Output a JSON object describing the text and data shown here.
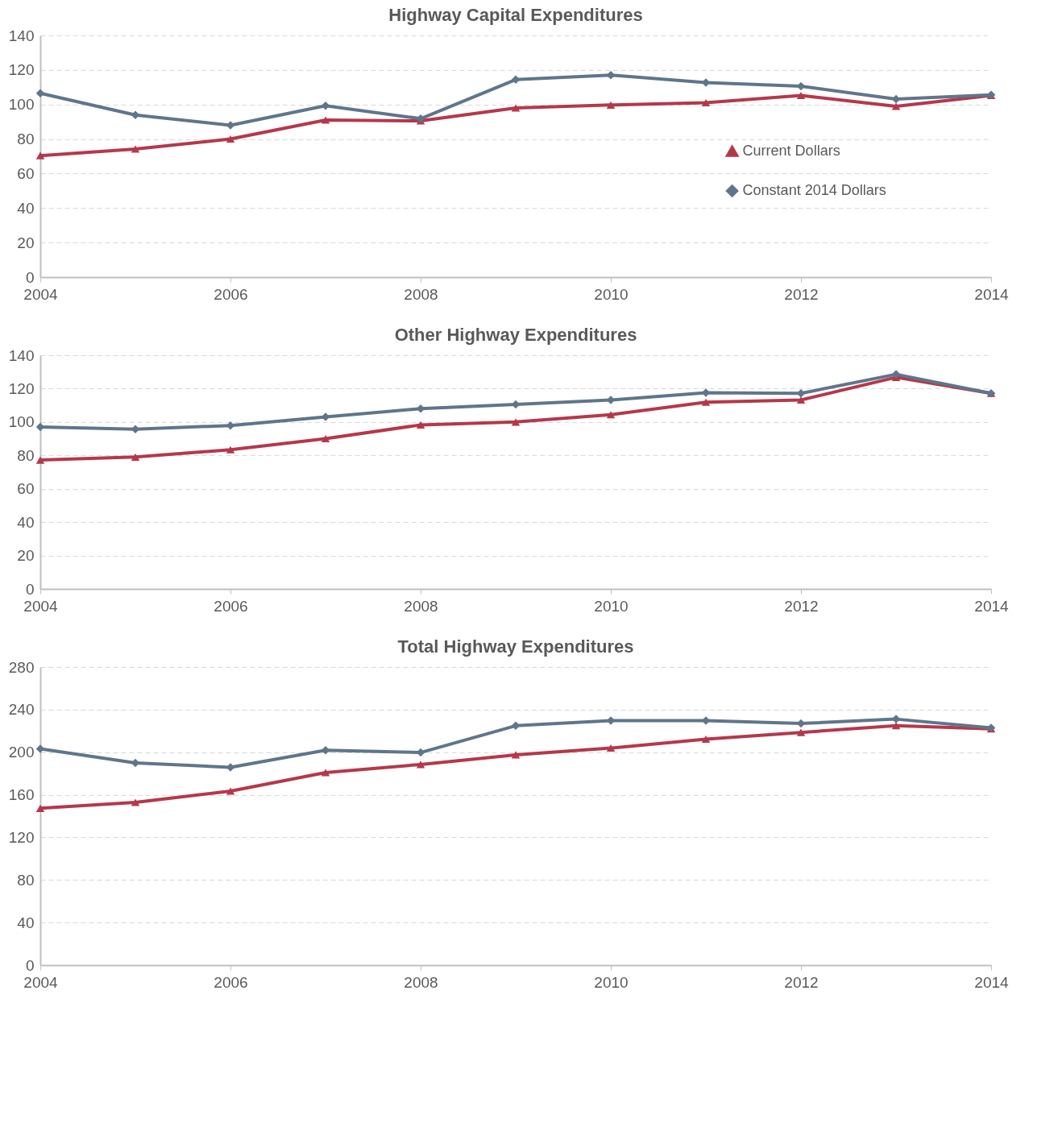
{
  "chart_data": [
    {
      "type": "line",
      "title": "Highway Capital Expenditures",
      "x": [
        2004,
        2005,
        2006,
        2007,
        2008,
        2009,
        2010,
        2011,
        2012,
        2013,
        2014
      ],
      "xlim": [
        2004,
        2014
      ],
      "xticks": [
        2004,
        2006,
        2008,
        2010,
        2012,
        2014
      ],
      "ylim": [
        0,
        140
      ],
      "yticks": [
        0,
        20,
        40,
        60,
        80,
        100,
        120,
        140
      ],
      "grid": "y",
      "legend": "right",
      "line_style": "solid",
      "series": [
        {
          "name": "Current Dollars",
          "color": "#b5384a",
          "marker": "triangle",
          "values": [
            70.4,
            74.2,
            80,
            91,
            90.5,
            98,
            99.7,
            101,
            105.2,
            98.9,
            105.2
          ]
        },
        {
          "name": "Constant 2014 Dollars",
          "color": "#5f758c",
          "marker": "diamond",
          "values": [
            106.5,
            93.9,
            88,
            99.3,
            91.8,
            114.4,
            117,
            112.7,
            110.6,
            103.1,
            105.6
          ]
        }
      ]
    },
    {
      "type": "line",
      "title": "Other Highway Expenditures",
      "x": [
        2004,
        2005,
        2006,
        2007,
        2008,
        2009,
        2010,
        2011,
        2012,
        2013,
        2014
      ],
      "xlim": [
        2004,
        2014
      ],
      "xticks": [
        2004,
        2006,
        2008,
        2010,
        2012,
        2014
      ],
      "ylim": [
        0,
        140
      ],
      "yticks": [
        0,
        20,
        40,
        60,
        80,
        100,
        120,
        140
      ],
      "grid": "y",
      "legend": "right",
      "line_style": "solid",
      "series": [
        {
          "name": "Current Dollars",
          "color": "#b5384a",
          "marker": "triangle",
          "values": [
            77.2,
            79,
            83.4,
            90,
            98.3,
            100,
            104.4,
            111.9,
            113.2,
            126.8,
            117.2
          ]
        },
        {
          "name": "Constant 2014 Dollars",
          "color": "#5f758c",
          "marker": "diamond",
          "values": [
            97,
            95.7,
            97.9,
            103.1,
            108,
            110.6,
            113.2,
            117.6,
            117.2,
            128.6,
            117.2
          ]
        }
      ]
    },
    {
      "type": "line",
      "title": "Total Highway Expenditures",
      "x": [
        2004,
        2005,
        2006,
        2007,
        2008,
        2009,
        2010,
        2011,
        2012,
        2013,
        2014
      ],
      "xlim": [
        2004,
        2014
      ],
      "xticks": [
        2004,
        2006,
        2008,
        2010,
        2012,
        2014
      ],
      "ylim": [
        0,
        280
      ],
      "yticks": [
        0,
        40,
        80,
        120,
        160,
        200,
        240,
        280
      ],
      "grid": "y",
      "legend": "right",
      "line_style": "solid",
      "series": [
        {
          "name": "Current Dollars",
          "color": "#b5384a",
          "marker": "triangle",
          "values": [
            147.3,
            152.9,
            163.4,
            180.9,
            188.5,
            197.6,
            203.9,
            212.3,
            218.6,
            224.9,
            222
          ]
        },
        {
          "name": "Constant 2014 Dollars",
          "color": "#5f758c",
          "marker": "diamond",
          "values": [
            203.2,
            190,
            185.8,
            201.8,
            199.7,
            224.9,
            229.7,
            229.7,
            227,
            231.1,
            222.8
          ]
        }
      ]
    }
  ]
}
